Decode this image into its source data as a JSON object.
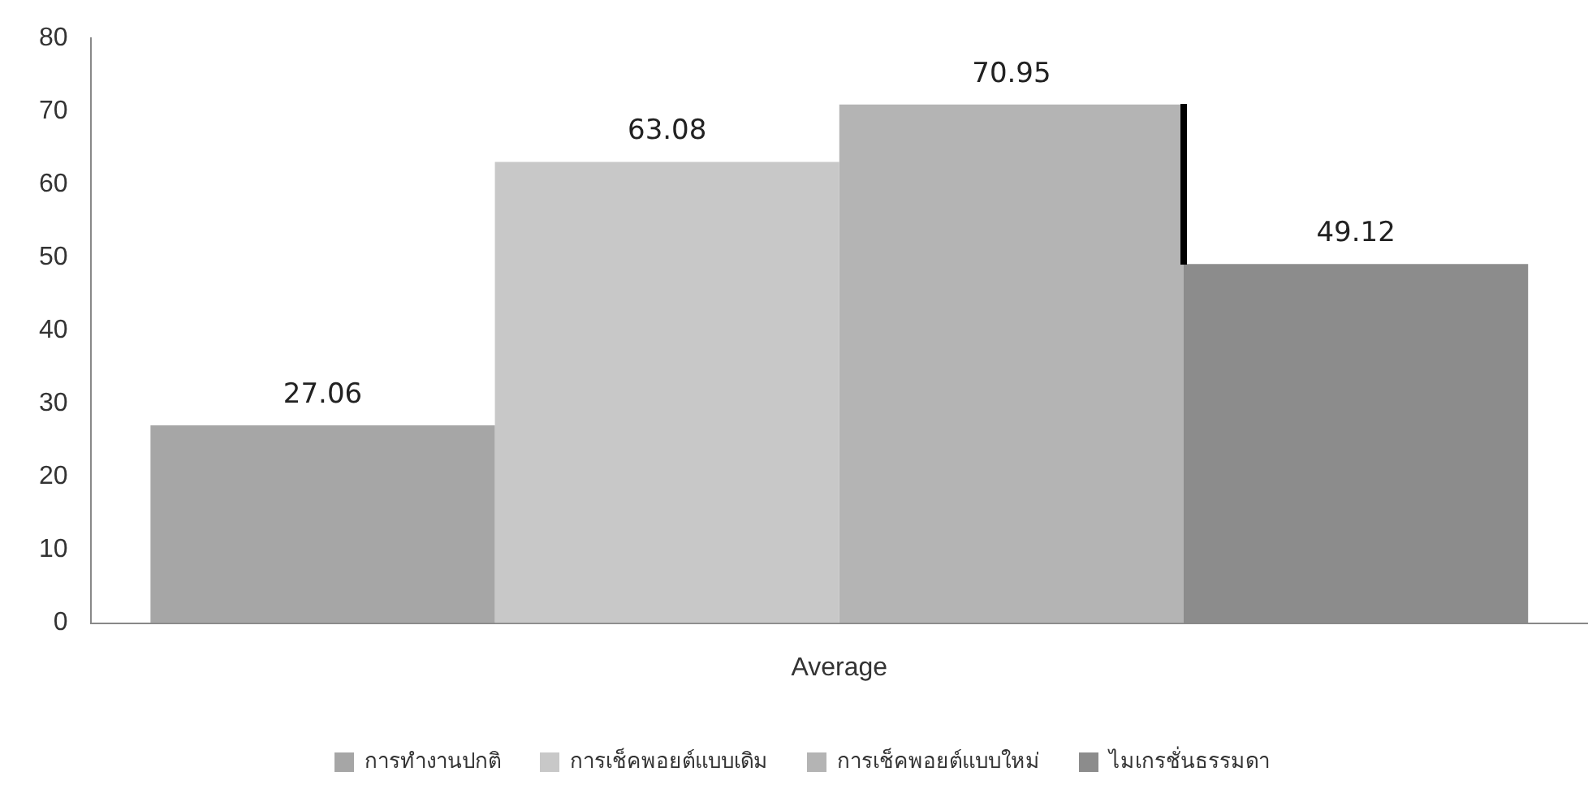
{
  "chart_data": {
    "type": "bar",
    "categories": [
      "Average"
    ],
    "series": [
      {
        "name": "การทำงานปกติ",
        "color": "#a6a6a6",
        "values": [
          27.06
        ]
      },
      {
        "name": "การเช็คพอยต์แบบเดิม",
        "color": "#c8c8c8",
        "values": [
          63.08
        ]
      },
      {
        "name": "การเช็คพอยต์แบบใหม่",
        "color": "#b4b4b4",
        "values": [
          70.95
        ]
      },
      {
        "name": "ไมเกรชั่นธรรมดา",
        "color": "#8c8c8c",
        "values": [
          49.12
        ]
      }
    ],
    "ylim": [
      0,
      80
    ],
    "yticks": [
      0,
      10,
      20,
      30,
      40,
      50,
      60,
      70,
      80
    ],
    "grid": false,
    "legend": "bottom",
    "data_labels": true
  }
}
